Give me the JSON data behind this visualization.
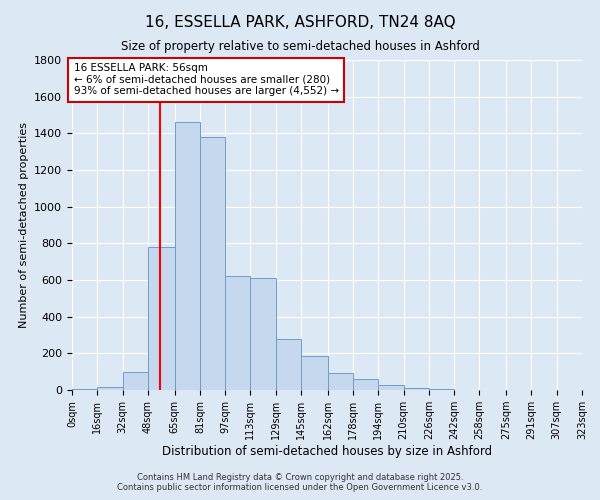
{
  "title": "16, ESSELLA PARK, ASHFORD, TN24 8AQ",
  "subtitle": "Size of property relative to semi-detached houses in Ashford",
  "xlabel": "Distribution of semi-detached houses by size in Ashford",
  "ylabel": "Number of semi-detached properties",
  "property_size": 56,
  "bin_edges": [
    0,
    16,
    32,
    48,
    65,
    81,
    97,
    113,
    129,
    145,
    162,
    178,
    194,
    210,
    226,
    242,
    258,
    275,
    291,
    307,
    323
  ],
  "bin_labels": [
    "0sqm",
    "16sqm",
    "32sqm",
    "48sqm",
    "65sqm",
    "81sqm",
    "97sqm",
    "113sqm",
    "129sqm",
    "145sqm",
    "162sqm",
    "178sqm",
    "194sqm",
    "210sqm",
    "226sqm",
    "242sqm",
    "258sqm",
    "275sqm",
    "291sqm",
    "307sqm",
    "323sqm"
  ],
  "counts": [
    5,
    15,
    100,
    780,
    1460,
    1380,
    620,
    610,
    280,
    185,
    95,
    60,
    25,
    10,
    5,
    2,
    1,
    1,
    1,
    1
  ],
  "bar_color": "#c5d8ee",
  "bar_edge_color": "#6b9fc8",
  "red_line_x": 56,
  "annotation_text": "16 ESSELLA PARK: 56sqm\n← 6% of semi-detached houses are smaller (280)\n93% of semi-detached houses are larger (4,552) →",
  "annotation_box_color": "#ffffff",
  "annotation_box_edge": "#cc0000",
  "ylim": [
    0,
    1800
  ],
  "background_color": "#dde8f5",
  "grid_color": "#ffffff",
  "yticks": [
    0,
    200,
    400,
    600,
    800,
    1000,
    1200,
    1400,
    1600,
    1800
  ],
  "footer_line1": "Contains HM Land Registry data © Crown copyright and database right 2025.",
  "footer_line2": "Contains public sector information licensed under the Open Government Licence v3.0."
}
